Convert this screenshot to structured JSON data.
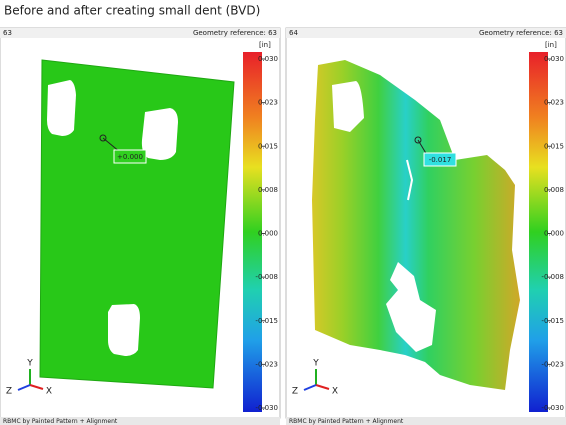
{
  "title": "Before and after creating small dent (BVD)",
  "panels": [
    {
      "id": "63",
      "reference": "Geometry reference: 63",
      "unit": "[in]",
      "scale": [
        "0.030",
        "0.023",
        "0.015",
        "0.008",
        "0.000",
        "-0.008",
        "-0.015",
        "-0.023",
        "-0.030"
      ],
      "probe_label": "+0.000",
      "axes": [
        "Y",
        "Z",
        "X"
      ],
      "footer": "RBMC by Painted Pattern + Alignment"
    },
    {
      "id": "64",
      "reference": "Geometry reference: 63",
      "unit": "[in]",
      "scale": [
        "0.030",
        "0.023",
        "0.015",
        "0.008",
        "0.000",
        "-0.008",
        "-0.015",
        "-0.023",
        "-0.030"
      ],
      "probe_label": "-0.017",
      "axes": [
        "Y",
        "Z",
        "X"
      ],
      "footer": "RBMC by Painted Pattern + Alignment"
    }
  ]
}
